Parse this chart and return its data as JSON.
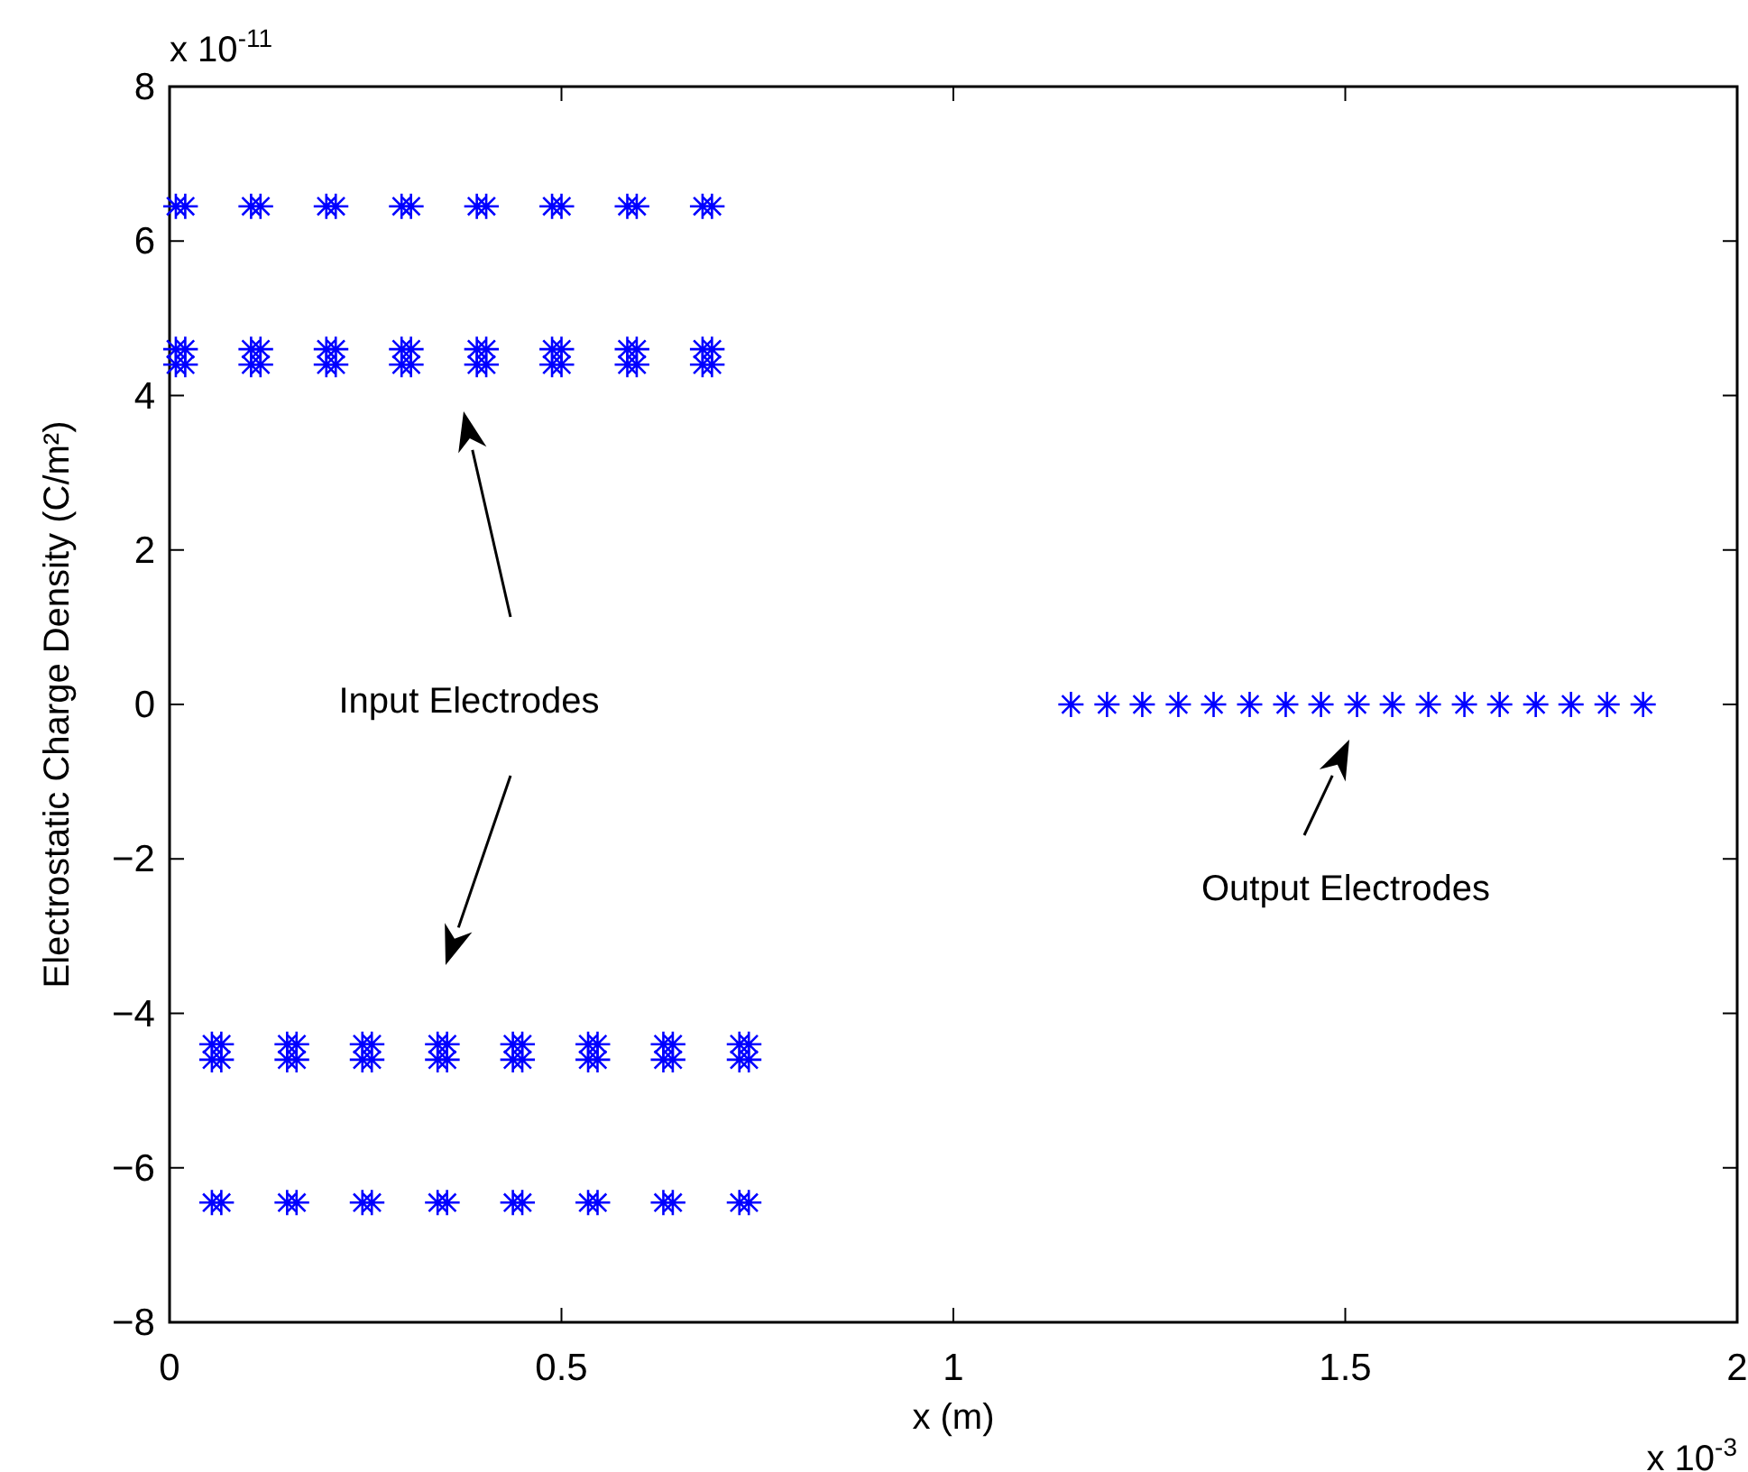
{
  "chart_data": {
    "type": "scatter",
    "xlabel": "x (m)",
    "ylabel": "Electrostatic Charge Density (C/m²)",
    "xlim": [
      0,
      2
    ],
    "xticks": [
      0,
      0.5,
      1,
      1.5,
      2
    ],
    "ylim": [
      -8,
      8
    ],
    "yticks": [
      -8,
      -6,
      -4,
      -2,
      0,
      2,
      4,
      6,
      8
    ],
    "marker": "cross",
    "grid": false,
    "series": [
      {
        "color": "#0000ff",
        "x": [
          0.008,
          0.02,
          0.104,
          0.116,
          0.2,
          0.212,
          0.296,
          0.308,
          0.392,
          0.404,
          0.488,
          0.5,
          0.584,
          0.596,
          0.68,
          0.692
        ],
        "values": [
          6.45,
          6.45,
          6.45,
          6.45,
          6.45,
          6.45,
          6.45,
          6.45,
          6.45,
          6.45,
          6.45,
          6.45,
          6.45,
          6.45,
          6.45,
          6.45
        ]
      },
      {
        "color": "#0000ff",
        "x": [
          0.008,
          0.02,
          0.104,
          0.116,
          0.2,
          0.212,
          0.296,
          0.308,
          0.392,
          0.404,
          0.488,
          0.5,
          0.584,
          0.596,
          0.68,
          0.692
        ],
        "values": [
          4.6,
          4.6,
          4.6,
          4.6,
          4.6,
          4.6,
          4.6,
          4.6,
          4.6,
          4.6,
          4.6,
          4.6,
          4.6,
          4.6,
          4.6,
          4.6
        ]
      },
      {
        "color": "#0000ff",
        "x": [
          0.008,
          0.02,
          0.104,
          0.116,
          0.2,
          0.212,
          0.296,
          0.308,
          0.392,
          0.404,
          0.488,
          0.5,
          0.584,
          0.596,
          0.68,
          0.692
        ],
        "values": [
          4.4,
          4.4,
          4.4,
          4.4,
          4.4,
          4.4,
          4.4,
          4.4,
          4.4,
          4.4,
          4.4,
          4.4,
          4.4,
          4.4,
          4.4,
          4.4
        ]
      },
      {
        "color": "#0000ff",
        "x": [
          0.054,
          0.066,
          0.15,
          0.162,
          0.246,
          0.258,
          0.342,
          0.354,
          0.438,
          0.45,
          0.534,
          0.546,
          0.63,
          0.642,
          0.727,
          0.739
        ],
        "values": [
          -4.4,
          -4.4,
          -4.4,
          -4.4,
          -4.4,
          -4.4,
          -4.4,
          -4.4,
          -4.4,
          -4.4,
          -4.4,
          -4.4,
          -4.4,
          -4.4,
          -4.4,
          -4.4
        ]
      },
      {
        "color": "#0000ff",
        "x": [
          0.054,
          0.066,
          0.15,
          0.162,
          0.246,
          0.258,
          0.342,
          0.354,
          0.438,
          0.45,
          0.534,
          0.546,
          0.63,
          0.642,
          0.727,
          0.739
        ],
        "values": [
          -4.6,
          -4.6,
          -4.6,
          -4.6,
          -4.6,
          -4.6,
          -4.6,
          -4.6,
          -4.6,
          -4.6,
          -4.6,
          -4.6,
          -4.6,
          -4.6,
          -4.6,
          -4.6
        ]
      },
      {
        "color": "#0000ff",
        "x": [
          0.054,
          0.066,
          0.15,
          0.162,
          0.246,
          0.258,
          0.342,
          0.354,
          0.438,
          0.45,
          0.534,
          0.546,
          0.63,
          0.642,
          0.727,
          0.739
        ],
        "values": [
          -6.45,
          -6.45,
          -6.45,
          -6.45,
          -6.45,
          -6.45,
          -6.45,
          -6.45,
          -6.45,
          -6.45,
          -6.45,
          -6.45,
          -6.45,
          -6.45,
          -6.45,
          -6.45
        ]
      },
      {
        "color": "#0000ff",
        "x": [
          1.15,
          1.196,
          1.241,
          1.287,
          1.332,
          1.378,
          1.424,
          1.469,
          1.515,
          1.56,
          1.606,
          1.652,
          1.697,
          1.743,
          1.788,
          1.834,
          1.88
        ],
        "values": [
          0,
          0,
          0,
          0,
          0,
          0,
          0,
          0,
          0,
          0,
          0,
          0,
          0,
          0,
          0,
          0,
          0
        ]
      }
    ],
    "annotations": [
      "Input Electrodes",
      "Output Electrodes",
      "x 10$^{-11}$",
      "x 10$^{-3}$"
    ]
  }
}
